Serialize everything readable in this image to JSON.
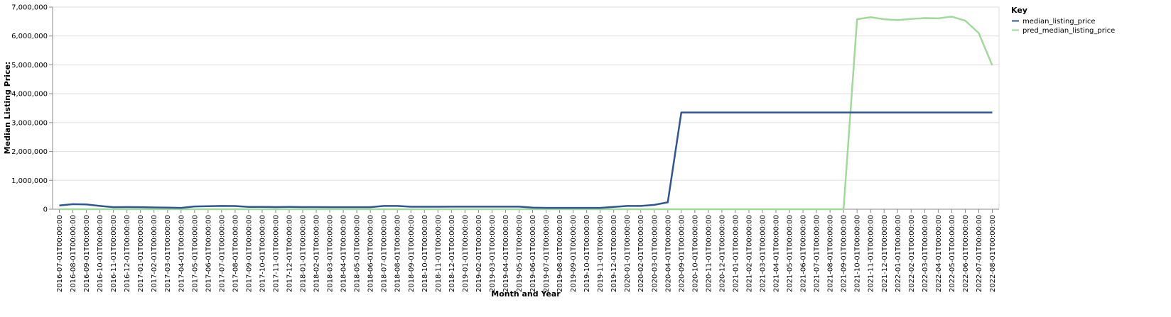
{
  "chart_data": {
    "type": "line",
    "xlabel": "Month and Year",
    "ylabel": "Median Listing Price:",
    "ylim": [
      0,
      7000000
    ],
    "y_ticks": [
      0,
      1000000,
      2000000,
      3000000,
      4000000,
      5000000,
      6000000,
      7000000
    ],
    "y_tick_labels": [
      "0",
      "1,000,000",
      "2,000,000",
      "3,000,000",
      "4,000,000",
      "5,000,000",
      "6,000,000",
      "7,000,000"
    ],
    "grid": true,
    "legend": {
      "title": "Key",
      "placement": "top-right"
    },
    "colors": {
      "median_listing_price": "#2f5597",
      "pred_median_listing_price": "#a1d99b",
      "grid": "#dddddd",
      "axis": "#888888"
    },
    "x": [
      "2016-07-01T00:00:00",
      "2016-08-01T00:00:00",
      "2016-09-01T00:00:00",
      "2016-10-01T00:00:00",
      "2016-11-01T00:00:00",
      "2016-12-01T00:00:00",
      "2017-01-01T00:00:00",
      "2017-02-01T00:00:00",
      "2017-03-01T00:00:00",
      "2017-04-01T00:00:00",
      "2017-05-01T00:00:00",
      "2017-06-01T00:00:00",
      "2017-07-01T00:00:00",
      "2017-08-01T00:00:00",
      "2017-09-01T00:00:00",
      "2017-10-01T00:00:00",
      "2017-11-01T00:00:00",
      "2017-12-01T00:00:00",
      "2018-01-01T00:00:00",
      "2018-02-01T00:00:00",
      "2018-03-01T00:00:00",
      "2018-04-01T00:00:00",
      "2018-05-01T00:00:00",
      "2018-06-01T00:00:00",
      "2018-07-01T00:00:00",
      "2018-08-01T00:00:00",
      "2018-09-01T00:00:00",
      "2018-10-01T00:00:00",
      "2018-11-01T00:00:00",
      "2018-12-01T00:00:00",
      "2019-01-01T00:00:00",
      "2019-02-01T00:00:00",
      "2019-03-01T00:00:00",
      "2019-04-01T00:00:00",
      "2019-05-01T00:00:00",
      "2019-06-01T00:00:00",
      "2019-07-01T00:00:00",
      "2019-08-01T00:00:00",
      "2019-09-01T00:00:00",
      "2019-10-01T00:00:00",
      "2019-11-01T00:00:00",
      "2019-12-01T00:00:00",
      "2020-01-01T00:00:00",
      "2020-02-01T00:00:00",
      "2020-03-01T00:00:00",
      "2020-04-01T00:00:00",
      "2020-09-01T00:00:00",
      "2020-10-01T00:00:00",
      "2020-11-01T00:00:00",
      "2020-12-01T00:00:00",
      "2021-01-01T00:00:00",
      "2021-02-01T00:00:00",
      "2021-03-01T00:00:00",
      "2021-04-01T00:00:00",
      "2021-05-01T00:00:00",
      "2021-06-01T00:00:00",
      "2021-07-01T00:00:00",
      "2021-08-01T00:00:00",
      "2021-09-01T00:00:00",
      "2021-10-01T00:00:00",
      "2021-11-01T00:00:00",
      "2021-12-01T00:00:00",
      "2022-01-01T00:00:00",
      "2022-02-01T00:00:00",
      "2022-03-01T00:00:00",
      "2022-04-01T00:00:00",
      "2022-05-01T00:00:00",
      "2022-06-01T00:00:00",
      "2022-07-01T00:00:00",
      "2022-08-01T00:00:00"
    ],
    "series": [
      {
        "name": "median_listing_price",
        "values": [
          130000,
          175000,
          165000,
          115000,
          70000,
          75000,
          70000,
          60000,
          55000,
          45000,
          95000,
          105000,
          115000,
          110000,
          80000,
          80000,
          75000,
          80000,
          75000,
          75000,
          70000,
          70000,
          70000,
          70000,
          115000,
          115000,
          85000,
          85000,
          85000,
          90000,
          90000,
          90000,
          90000,
          90000,
          90000,
          55000,
          45000,
          45000,
          45000,
          45000,
          45000,
          80000,
          115000,
          115000,
          150000,
          240000,
          3350000,
          3350000,
          3350000,
          3350000,
          3350000,
          3350000,
          3350000,
          3350000,
          3350000,
          3350000,
          3350000,
          3350000,
          3350000,
          3350000,
          3350000,
          3350000,
          3350000,
          3350000,
          3350000,
          3350000,
          3350000,
          3350000,
          3350000,
          3350000
        ]
      },
      {
        "name": "pred_median_listing_price",
        "values": [
          0,
          0,
          0,
          0,
          0,
          0,
          0,
          0,
          0,
          0,
          0,
          0,
          0,
          0,
          0,
          0,
          0,
          0,
          0,
          0,
          0,
          0,
          0,
          0,
          0,
          0,
          0,
          0,
          0,
          0,
          0,
          0,
          0,
          0,
          0,
          0,
          0,
          0,
          0,
          0,
          0,
          0,
          0,
          0,
          0,
          0,
          0,
          0,
          0,
          0,
          0,
          0,
          0,
          0,
          0,
          0,
          0,
          0,
          0,
          6580000,
          6650000,
          6580000,
          6550000,
          6590000,
          6620000,
          6610000,
          6670000,
          6530000,
          6100000,
          4980000
        ]
      }
    ]
  }
}
